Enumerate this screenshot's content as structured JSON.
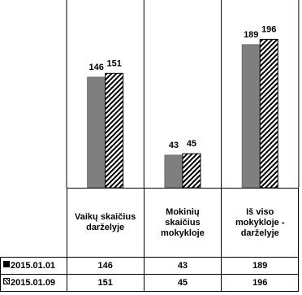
{
  "chart_data": {
    "type": "bar",
    "categories": [
      "Vaikų skaičius darželyje",
      "Mokinių skaičius mokykloje",
      "Iš viso mokykloje - darželyje"
    ],
    "series": [
      {
        "name": "2015.01.01",
        "values": [
          146,
          43,
          189
        ],
        "color": "#7f7f7f",
        "fill": "solid"
      },
      {
        "name": "2015.01.09",
        "values": [
          151,
          45,
          196
        ],
        "color": "#000000",
        "fill": "diagonal-hatch"
      }
    ],
    "ylim": [
      0,
      205
    ],
    "grid": false,
    "legend": "data-table-row-headers",
    "data_table": true
  }
}
